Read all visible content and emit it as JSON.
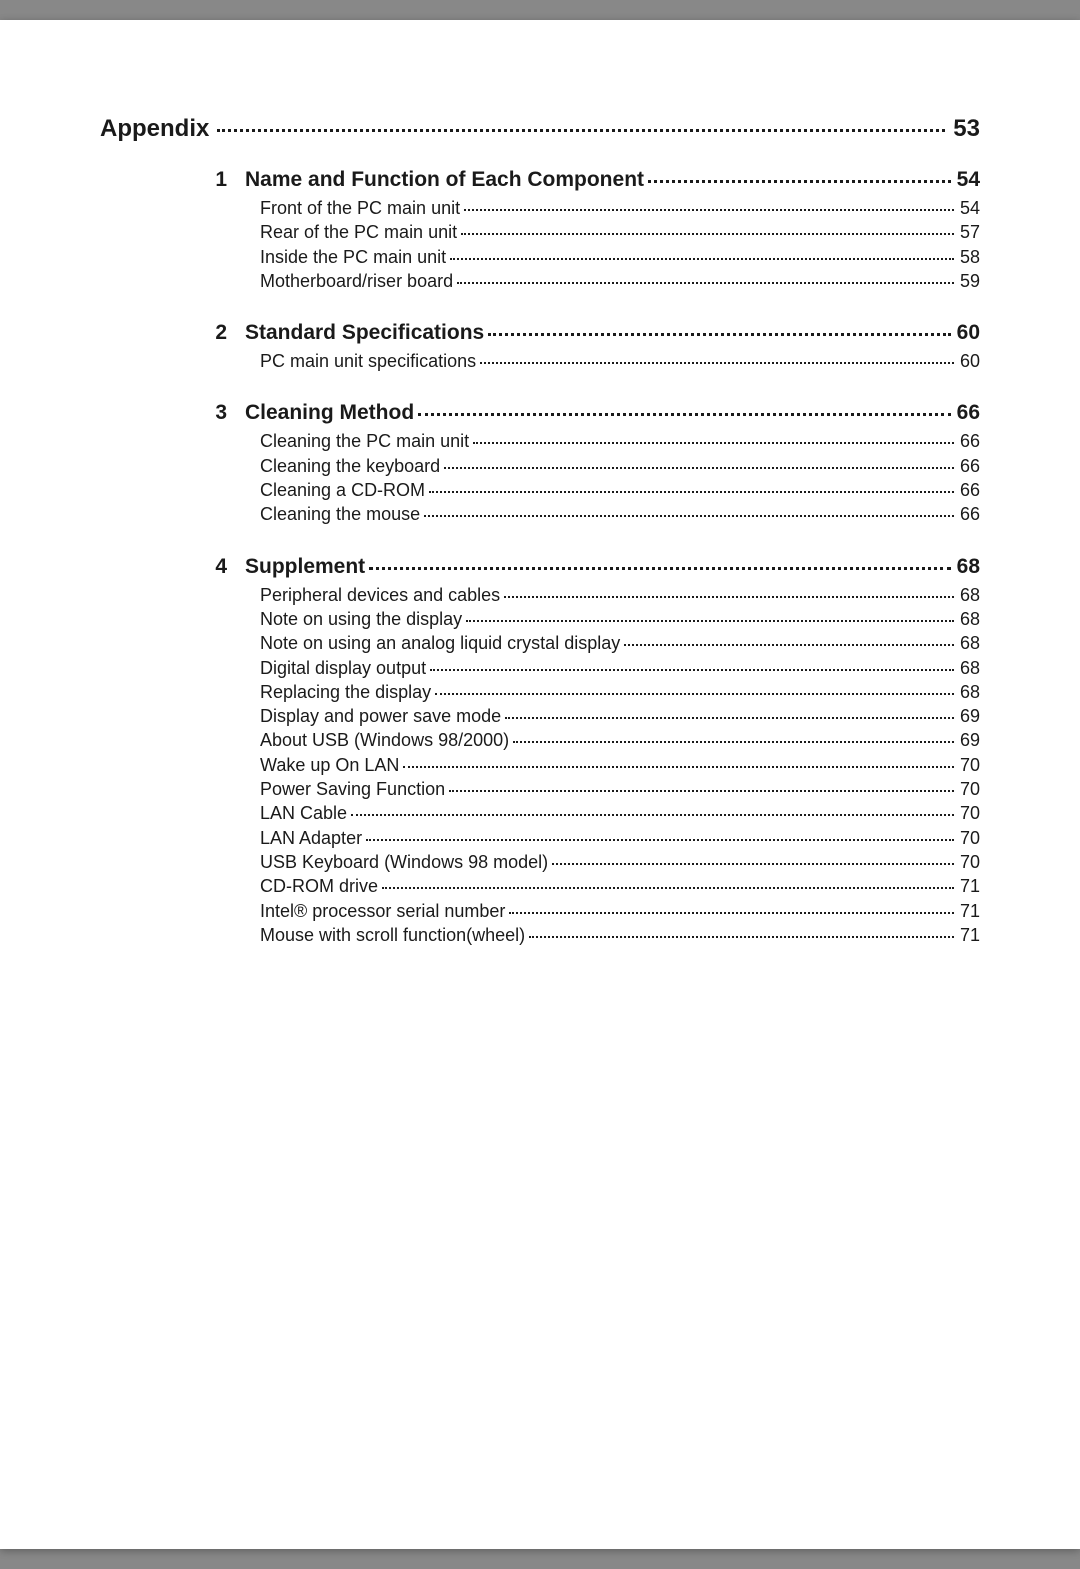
{
  "text_color": "#1a1a1a",
  "appendix": {
    "label": "Appendix",
    "page": "53"
  },
  "sections": [
    {
      "num": "1",
      "title": "Name and Function of Each Component",
      "page": "54",
      "subs": [
        {
          "title": "Front of the PC main unit",
          "page": "54"
        },
        {
          "title": "Rear of the PC main unit",
          "page": "57"
        },
        {
          "title": "Inside the PC main unit",
          "page": "58"
        },
        {
          "title": "Motherboard/riser board",
          "page": "59"
        }
      ]
    },
    {
      "num": "2",
      "title": "Standard Specifications",
      "page": "60",
      "subs": [
        {
          "title": "PC main unit specifications",
          "page": "60"
        }
      ]
    },
    {
      "num": "3",
      "title": "Cleaning Method",
      "page": "66",
      "subs": [
        {
          "title": "Cleaning the PC main unit",
          "page": "66"
        },
        {
          "title": "Cleaning the keyboard",
          "page": "66"
        },
        {
          "title": "Cleaning a CD-ROM",
          "page": "66"
        },
        {
          "title": "Cleaning the mouse",
          "page": "66"
        }
      ]
    },
    {
      "num": "4",
      "title": "Supplement",
      "page": "68",
      "subs": [
        {
          "title": "Peripheral devices and cables",
          "page": "68"
        },
        {
          "title": "Note on using the display",
          "page": "68"
        },
        {
          "title": "Note on using an analog liquid crystal display",
          "page": "68"
        },
        {
          "title": "Digital display output",
          "page": "68"
        },
        {
          "title": "Replacing the display",
          "page": "68"
        },
        {
          "title": "Display and power save mode",
          "page": "69"
        },
        {
          "title": "About USB (Windows 98/2000)",
          "page": "69"
        },
        {
          "title": "Wake up On LAN",
          "page": "70"
        },
        {
          "title": "Power Saving Function",
          "page": "70"
        },
        {
          "title": "LAN Cable",
          "page": "70"
        },
        {
          "title": "LAN Adapter",
          "page": "70"
        },
        {
          "title": "USB Keyboard (Windows 98 model)",
          "page": "70"
        },
        {
          "title": "CD-ROM drive",
          "page": "71"
        },
        {
          "title": "Intel® processor serial number",
          "page": "71"
        },
        {
          "title": "Mouse with scroll function(wheel)",
          "page": "71"
        }
      ]
    }
  ]
}
